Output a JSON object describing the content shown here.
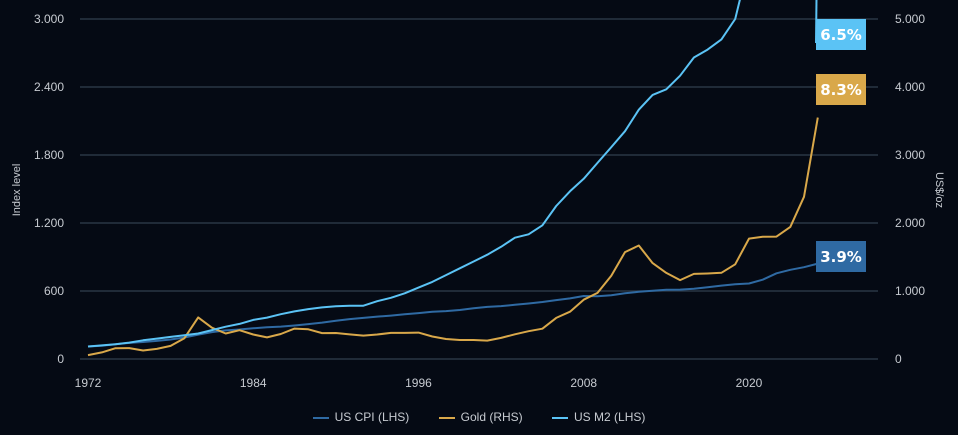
{
  "chart_data": {
    "type": "line",
    "title": "",
    "xlabel": "",
    "ylabel": "Index level",
    "ylabel_right": "US$/oz",
    "x_ticks": [
      "1972",
      "1984",
      "1996",
      "2008",
      "2020"
    ],
    "x_range": [
      1972,
      2030
    ],
    "y_left_ticks": [
      "0",
      "600",
      "1.200",
      "1.800",
      "2.400",
      "3.000"
    ],
    "y_left_tick_values": [
      0,
      600,
      1200,
      1800,
      2400,
      3000
    ],
    "ylim_left": [
      0,
      3000
    ],
    "y_right_ticks": [
      "0",
      "1.000",
      "2.000",
      "3.000",
      "4.000",
      "5.000"
    ],
    "y_right_tick_values": [
      0,
      1000,
      2000,
      3000,
      4000,
      5000
    ],
    "ylim_right": [
      0,
      5000
    ],
    "grid": true,
    "legend_position": "bottom",
    "x": [
      1972,
      1973,
      1974,
      1975,
      1976,
      1977,
      1978,
      1979,
      1980,
      1981,
      1982,
      1983,
      1984,
      1985,
      1986,
      1987,
      1988,
      1989,
      1990,
      1991,
      1992,
      1993,
      1994,
      1995,
      1996,
      1997,
      1998,
      1999,
      2000,
      2001,
      2002,
      2003,
      2004,
      2005,
      2006,
      2007,
      2008,
      2009,
      2010,
      2011,
      2012,
      2013,
      2014,
      2015,
      2016,
      2017,
      2018,
      2019,
      2020,
      2021,
      2022,
      2023,
      2024,
      2025
    ],
    "series": [
      {
        "name": "US CPI (LHS)",
        "axis": "left",
        "color": "#2f6aa3",
        "end_label": "3.9%",
        "values": [
          110,
          117,
          130,
          142,
          150,
          160,
          172,
          190,
          215,
          237,
          252,
          260,
          271,
          281,
          286,
          296,
          308,
          321,
          338,
          352,
          363,
          374,
          383,
          394,
          405,
          417,
          423,
          432,
          447,
          460,
          467,
          478,
          490,
          503,
          520,
          535,
          556,
          554,
          563,
          581,
          593,
          602,
          611,
          612,
          620,
          633,
          648,
          660,
          666,
          700,
          756,
          787,
          810,
          842
        ]
      },
      {
        "name": "Gold (RHS)",
        "axis": "right",
        "color": "#d9a84a",
        "end_label": "8.3%",
        "values": [
          58,
          97,
          159,
          161,
          125,
          148,
          193,
          306,
          612,
          460,
          375,
          424,
          361,
          317,
          368,
          447,
          437,
          381,
          383,
          362,
          344,
          360,
          384,
          384,
          388,
          331,
          294,
          279,
          279,
          271,
          310,
          363,
          409,
          445,
          604,
          696,
          872,
          972,
          1225,
          1572,
          1669,
          1411,
          1266,
          1160,
          1251,
          1257,
          1268,
          1393,
          1770,
          1799,
          1800,
          1943,
          2386,
          3550
        ]
      },
      {
        "name": "US M2 (LHS)",
        "axis": "left",
        "color": "#5bc3f5",
        "end_label": "6.5%",
        "values": [
          110,
          120,
          130,
          145,
          165,
          180,
          195,
          210,
          225,
          255,
          285,
          310,
          345,
          365,
          395,
          420,
          440,
          455,
          465,
          470,
          470,
          510,
          540,
          580,
          630,
          680,
          740,
          800,
          860,
          920,
          990,
          1070,
          1100,
          1180,
          1350,
          1480,
          1590,
          1730,
          1870,
          2010,
          2200,
          2330,
          2380,
          2500,
          2660,
          2730,
          2820,
          3000,
          3500,
          3900,
          3950,
          3850,
          4000,
          4200
        ]
      }
    ]
  },
  "legend": [
    {
      "label": "US CPI (LHS)",
      "color": "#2f6aa3"
    },
    {
      "label": "Gold (RHS)",
      "color": "#d9a84a"
    },
    {
      "label": "US M2 (LHS)",
      "color": "#5bc3f5"
    }
  ]
}
